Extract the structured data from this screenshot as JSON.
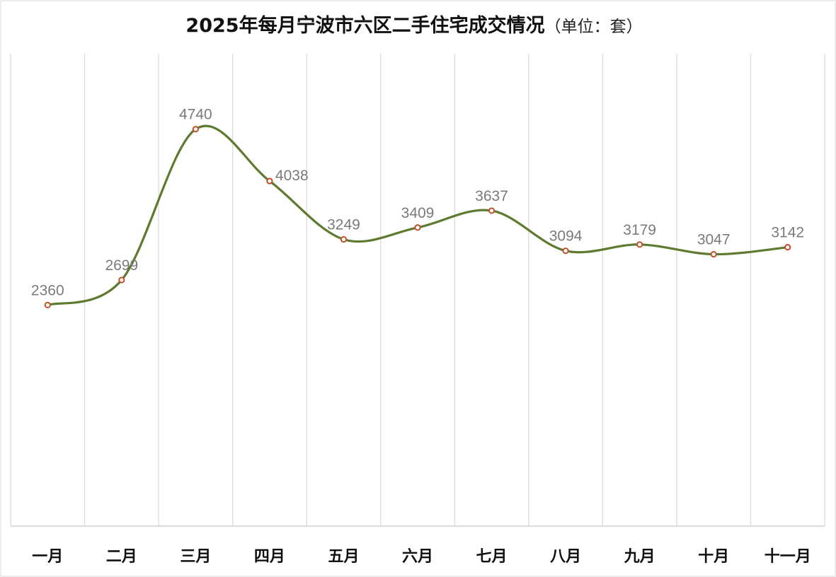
{
  "chart_data": {
    "type": "line",
    "title": "2025年每月宁波市六区二手住宅成交情况",
    "title_unit": "（单位：套）",
    "categories": [
      "一月",
      "二月",
      "三月",
      "四月",
      "五月",
      "六月",
      "七月",
      "八月",
      "九月",
      "十月",
      "十一月"
    ],
    "series": [
      {
        "values": [
          2360,
          2699,
          4740,
          4038,
          3249,
          3409,
          3637,
          3094,
          3179,
          3047,
          3142
        ]
      }
    ],
    "data_labels": [
      "2360",
      "2699",
      "4740",
      "4038",
      "3249",
      "3409",
      "3637",
      "3094",
      "3179",
      "3047",
      "3142"
    ],
    "ylim": [
      0,
      5000
    ],
    "smooth": true,
    "vertical_gridlines": true,
    "horizontal_gridlines": false,
    "legend": "none",
    "line_color": "#5e7a2e",
    "marker_color": "#c0502a"
  }
}
